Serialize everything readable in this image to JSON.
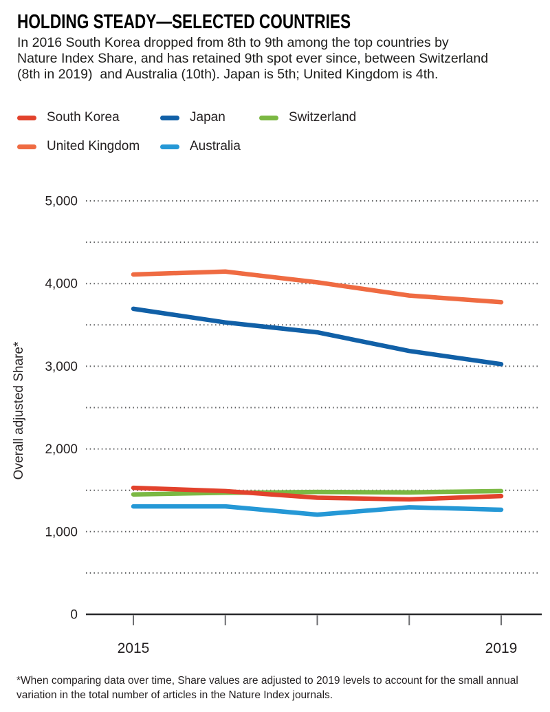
{
  "header": {
    "title": "HOLDING STEADY—SELECTED COUNTRIES",
    "subtitle_lines": [
      "In 2016 South Korea dropped from 8th to 9th among the top countries by",
      "Nature Index Share, and has retained 9th spot ever since, between Switzerland",
      "(8th in 2019)  and Australia (10th). Japan is 5th; United Kingdom is 4th."
    ]
  },
  "footnote_lines": [
    "*When comparing data over time, Share values are adjusted to 2019 levels to account for the small annual",
    "variation in the total number of articles in the Nature Index journals."
  ],
  "chart_data": {
    "type": "line",
    "x": [
      2015,
      2016,
      2017,
      2018,
      2019
    ],
    "series": [
      {
        "name": "United Kingdom",
        "color": "#ef6b42",
        "values": [
          4110,
          4145,
          4015,
          3855,
          3775
        ]
      },
      {
        "name": "Japan",
        "color": "#1160a7",
        "values": [
          3695,
          3530,
          3410,
          3185,
          3025
        ]
      },
      {
        "name": "Switzerland",
        "color": "#7bb843",
        "values": [
          1450,
          1470,
          1480,
          1475,
          1490
        ]
      },
      {
        "name": "Australia",
        "color": "#2598d6",
        "values": [
          1305,
          1305,
          1205,
          1295,
          1265
        ]
      },
      {
        "name": "South Korea",
        "color": "#e2422c",
        "values": [
          1530,
          1490,
          1410,
          1390,
          1430
        ]
      }
    ],
    "ylabel": "Overall adjusted Share*",
    "ylim": [
      0,
      5000
    ],
    "y_minor_step": 500,
    "y_ticks": [
      {
        "value": 0,
        "label": "0"
      },
      {
        "value": 1000,
        "label": "1,000"
      },
      {
        "value": 2000,
        "label": "2,000"
      },
      {
        "value": 3000,
        "label": "3,000"
      },
      {
        "value": 4000,
        "label": "4,000"
      },
      {
        "value": 5000,
        "label": "5,000"
      }
    ],
    "x_labeled_ticks": [
      {
        "value": 2015,
        "label": "2015"
      },
      {
        "value": 2019,
        "label": "2019"
      }
    ],
    "grid": "horizontal-dotted",
    "legend_position": "top-left-two-rows",
    "grid_color": "#58595b",
    "axis_color": "#28282a",
    "tick_color": "#6d6e71"
  }
}
